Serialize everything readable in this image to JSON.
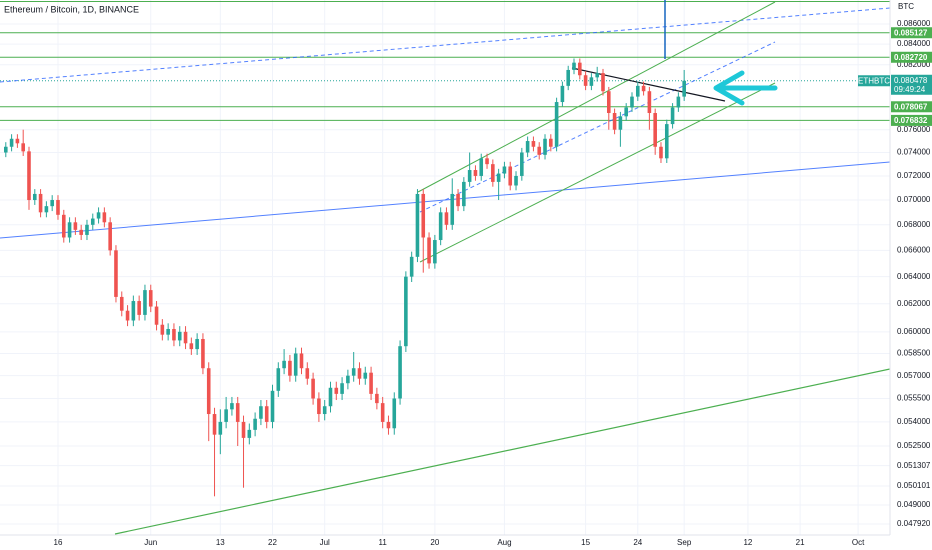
{
  "chart_data": {
    "type": "candlestick",
    "title": "Ethereum / Bitcoin, 1D, BINANCE",
    "symbol": "ETHBTC",
    "unit": "BTC",
    "countdown": "09:49:24",
    "log_scale": true,
    "up_color": "#26a69a",
    "down_color": "#ef5350",
    "level_color": "#4caf50",
    "xlim": [
      -1,
      152.5
    ],
    "xticks": [
      {
        "value": 9,
        "label": "16"
      },
      {
        "value": 25,
        "label": "Jun"
      },
      {
        "value": 37,
        "label": "13"
      },
      {
        "value": 46,
        "label": "22"
      },
      {
        "value": 55,
        "label": "Jul"
      },
      {
        "value": 65,
        "label": "11"
      },
      {
        "value": 74,
        "label": "20"
      },
      {
        "value": 86,
        "label": "Aug"
      },
      {
        "value": 100,
        "label": "15"
      },
      {
        "value": 109,
        "label": "24"
      },
      {
        "value": 117,
        "label": "Sep"
      },
      {
        "value": 128,
        "label": "12"
      },
      {
        "value": 137,
        "label": "21"
      },
      {
        "value": 147,
        "label": "Oct"
      }
    ],
    "ylim": [
      0.04731,
      0.08845
    ],
    "yticks": [
      {
        "value": 0.086,
        "label": "0.086000"
      },
      {
        "value": 0.084,
        "label": "0.084000"
      },
      {
        "value": 0.082,
        "label": "0.082000"
      },
      {
        "value": 0.076,
        "label": "0.076000"
      },
      {
        "value": 0.074,
        "label": "0.074000"
      },
      {
        "value": 0.072,
        "label": "0.072000"
      },
      {
        "value": 0.07,
        "label": "0.070000"
      },
      {
        "value": 0.068,
        "label": "0.068000"
      },
      {
        "value": 0.066,
        "label": "0.066000"
      },
      {
        "value": 0.064,
        "label": "0.064000"
      },
      {
        "value": 0.062,
        "label": "0.062000"
      },
      {
        "value": 0.06,
        "label": "0.060000"
      },
      {
        "value": 0.0585,
        "label": "0.058500"
      },
      {
        "value": 0.057,
        "label": "0.057000"
      },
      {
        "value": 0.0555,
        "label": "0.055500"
      },
      {
        "value": 0.054,
        "label": "0.054000"
      },
      {
        "value": 0.0525,
        "label": "0.052500"
      },
      {
        "value": 0.051307,
        "label": "0.051307"
      },
      {
        "value": 0.050101,
        "label": "0.050101"
      },
      {
        "value": 0.049,
        "label": "0.049000"
      },
      {
        "value": 0.04792,
        "label": "0.047920"
      }
    ],
    "levels": [
      0.085127,
      {
        "value": 0.08272,
        "label": "0.082720"
      },
      0.078067,
      0.076832
    ],
    "last_price": 0.080478,
    "open": [
      0.074,
      0.0745,
      0.0752,
      0.0748,
      0.0741,
      0.07,
      0.0705,
      0.069,
      0.0695,
      0.07,
      0.0688,
      0.067,
      0.0682,
      0.0676,
      0.0672,
      0.068,
      0.0685,
      0.069,
      0.0682,
      0.066,
      0.0625,
      0.0615,
      0.0608,
      0.0622,
      0.0612,
      0.063,
      0.0618,
      0.0605,
      0.0598,
      0.0602,
      0.0594,
      0.06,
      0.0592,
      0.0588,
      0.0595,
      0.0575,
      0.0545,
      0.0532,
      0.054,
      0.0548,
      0.0552,
      0.054,
      0.053,
      0.0535,
      0.0542,
      0.055,
      0.054,
      0.056,
      0.0575,
      0.058,
      0.057,
      0.0585,
      0.0575,
      0.0568,
      0.0555,
      0.0545,
      0.055,
      0.0562,
      0.0558,
      0.0565,
      0.057,
      0.0575,
      0.0568,
      0.0572,
      0.0558,
      0.0552,
      0.054,
      0.0536,
      0.0555,
      0.059,
      0.064,
      0.0655,
      0.0705,
      0.067,
      0.065,
      0.0668,
      0.069,
      0.068,
      0.0705,
      0.0695,
      0.0715,
      0.0725,
      0.072,
      0.0735,
      0.073,
      0.0715,
      0.0722,
      0.0728,
      0.0712,
      0.072,
      0.074,
      0.075,
      0.0745,
      0.0738,
      0.0752,
      0.0745,
      0.0785,
      0.08,
      0.0815,
      0.0822,
      0.081,
      0.08,
      0.0808,
      0.0812,
      0.0795,
      0.0775,
      0.076,
      0.0772,
      0.078,
      0.079,
      0.08,
      0.0795,
      0.0775,
      0.0745,
      0.0735,
      0.0765,
      0.078,
      0.079
    ],
    "high": [
      0.0749,
      0.0756,
      0.0756,
      0.076,
      0.0745,
      0.0709,
      0.0709,
      0.0699,
      0.0704,
      0.0704,
      0.0692,
      0.0686,
      0.0686,
      0.068,
      0.0684,
      0.0689,
      0.0694,
      0.0694,
      0.0686,
      0.0664,
      0.0629,
      0.0619,
      0.0626,
      0.0626,
      0.0634,
      0.0634,
      0.0622,
      0.0609,
      0.0606,
      0.0606,
      0.0604,
      0.0604,
      0.0596,
      0.0599,
      0.0599,
      0.0579,
      0.0549,
      0.0548,
      0.0556,
      0.0556,
      0.0556,
      0.0544,
      0.0539,
      0.0546,
      0.0554,
      0.0554,
      0.0564,
      0.0579,
      0.0588,
      0.0584,
      0.0589,
      0.0589,
      0.0579,
      0.0572,
      0.0559,
      0.0554,
      0.0566,
      0.0566,
      0.0569,
      0.0574,
      0.0586,
      0.0579,
      0.0576,
      0.0576,
      0.0562,
      0.0556,
      0.0544,
      0.0559,
      0.0594,
      0.0644,
      0.0659,
      0.0709,
      0.0709,
      0.0674,
      0.0672,
      0.0694,
      0.0694,
      0.0718,
      0.0709,
      0.0719,
      0.074,
      0.0729,
      0.0739,
      0.0739,
      0.0734,
      0.0726,
      0.0732,
      0.0732,
      0.0724,
      0.0744,
      0.0754,
      0.0754,
      0.0749,
      0.0756,
      0.0756,
      0.0789,
      0.0804,
      0.0819,
      0.0826,
      0.0826,
      0.0814,
      0.0812,
      0.0818,
      0.0816,
      0.0799,
      0.0779,
      0.0776,
      0.0784,
      0.0794,
      0.0804,
      0.0804,
      0.0799,
      0.0779,
      0.0749,
      0.0769,
      0.0784,
      0.0794,
      0.0815
    ],
    "low": [
      0.0736,
      0.0741,
      0.0744,
      0.0737,
      0.0692,
      0.0696,
      0.0686,
      0.0686,
      0.0691,
      0.0684,
      0.0666,
      0.0666,
      0.0672,
      0.0668,
      0.0668,
      0.0676,
      0.0681,
      0.0678,
      0.0656,
      0.0621,
      0.0611,
      0.0604,
      0.0604,
      0.0608,
      0.0608,
      0.0614,
      0.0601,
      0.0594,
      0.0594,
      0.059,
      0.059,
      0.0588,
      0.0584,
      0.0584,
      0.0571,
      0.0528,
      0.0495,
      0.052,
      0.0536,
      0.0544,
      0.0525,
      0.05,
      0.0526,
      0.0531,
      0.0538,
      0.0536,
      0.0536,
      0.0556,
      0.0571,
      0.0566,
      0.0566,
      0.0571,
      0.0564,
      0.0551,
      0.054,
      0.0541,
      0.0546,
      0.0554,
      0.0554,
      0.0561,
      0.0566,
      0.0564,
      0.0564,
      0.0554,
      0.0548,
      0.0536,
      0.0532,
      0.0532,
      0.0551,
      0.0586,
      0.0636,
      0.0651,
      0.0643,
      0.0646,
      0.0646,
      0.0664,
      0.0676,
      0.0676,
      0.0691,
      0.0691,
      0.0711,
      0.0716,
      0.0716,
      0.0726,
      0.0711,
      0.07,
      0.0718,
      0.0708,
      0.0708,
      0.0716,
      0.0736,
      0.0741,
      0.0734,
      0.0734,
      0.0741,
      0.0741,
      0.0781,
      0.0796,
      0.0811,
      0.0806,
      0.0796,
      0.0796,
      0.0804,
      0.0791,
      0.076,
      0.0756,
      0.0745,
      0.0768,
      0.0776,
      0.0786,
      0.0791,
      0.076,
      0.0738,
      0.0731,
      0.0731,
      0.0761,
      0.0776,
      0.0786
    ],
    "close": [
      0.0745,
      0.0752,
      0.0748,
      0.0741,
      0.07,
      0.0705,
      0.069,
      0.0695,
      0.07,
      0.0688,
      0.067,
      0.0682,
      0.0676,
      0.0672,
      0.068,
      0.0685,
      0.069,
      0.0682,
      0.066,
      0.0625,
      0.0615,
      0.0608,
      0.0622,
      0.0612,
      0.063,
      0.0618,
      0.0605,
      0.0598,
      0.0602,
      0.0594,
      0.06,
      0.0592,
      0.0588,
      0.0595,
      0.0575,
      0.0545,
      0.0532,
      0.054,
      0.0548,
      0.0552,
      0.054,
      0.053,
      0.0535,
      0.0542,
      0.055,
      0.054,
      0.056,
      0.0575,
      0.058,
      0.057,
      0.0585,
      0.0575,
      0.0568,
      0.0555,
      0.0545,
      0.055,
      0.0562,
      0.0558,
      0.0565,
      0.057,
      0.0575,
      0.0568,
      0.0572,
      0.0558,
      0.0552,
      0.054,
      0.0536,
      0.0555,
      0.059,
      0.064,
      0.0655,
      0.0705,
      0.067,
      0.065,
      0.0668,
      0.069,
      0.068,
      0.0705,
      0.0695,
      0.0715,
      0.0725,
      0.072,
      0.0735,
      0.073,
      0.0715,
      0.0722,
      0.0728,
      0.0712,
      0.072,
      0.074,
      0.075,
      0.0745,
      0.0738,
      0.0752,
      0.0745,
      0.0785,
      0.08,
      0.0815,
      0.0822,
      0.081,
      0.08,
      0.0808,
      0.0812,
      0.0795,
      0.0775,
      0.076,
      0.0772,
      0.078,
      0.079,
      0.08,
      0.0795,
      0.0775,
      0.0745,
      0.0735,
      0.0765,
      0.078,
      0.079,
      0.080478
    ]
  }
}
